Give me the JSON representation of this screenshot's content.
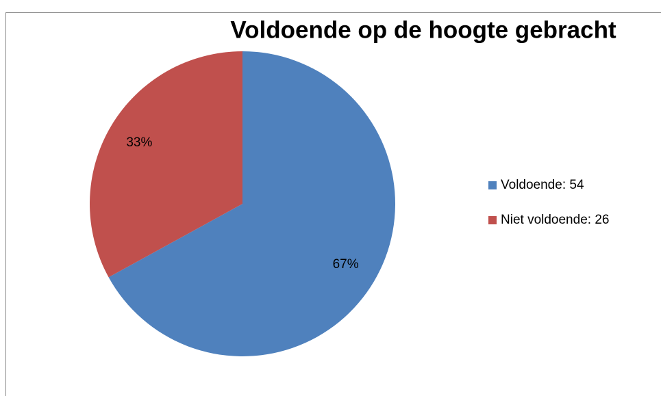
{
  "chart_data": {
    "type": "pie",
    "title": "Voldoende op de hoogte gebracht",
    "categories": [
      "Voldoende: 54",
      "Niet voldoende: 26"
    ],
    "values": [
      67,
      33
    ],
    "value_labels": [
      "67%",
      "33%"
    ],
    "colors": [
      "#4f81bd",
      "#c0504d"
    ],
    "legend": "right"
  }
}
